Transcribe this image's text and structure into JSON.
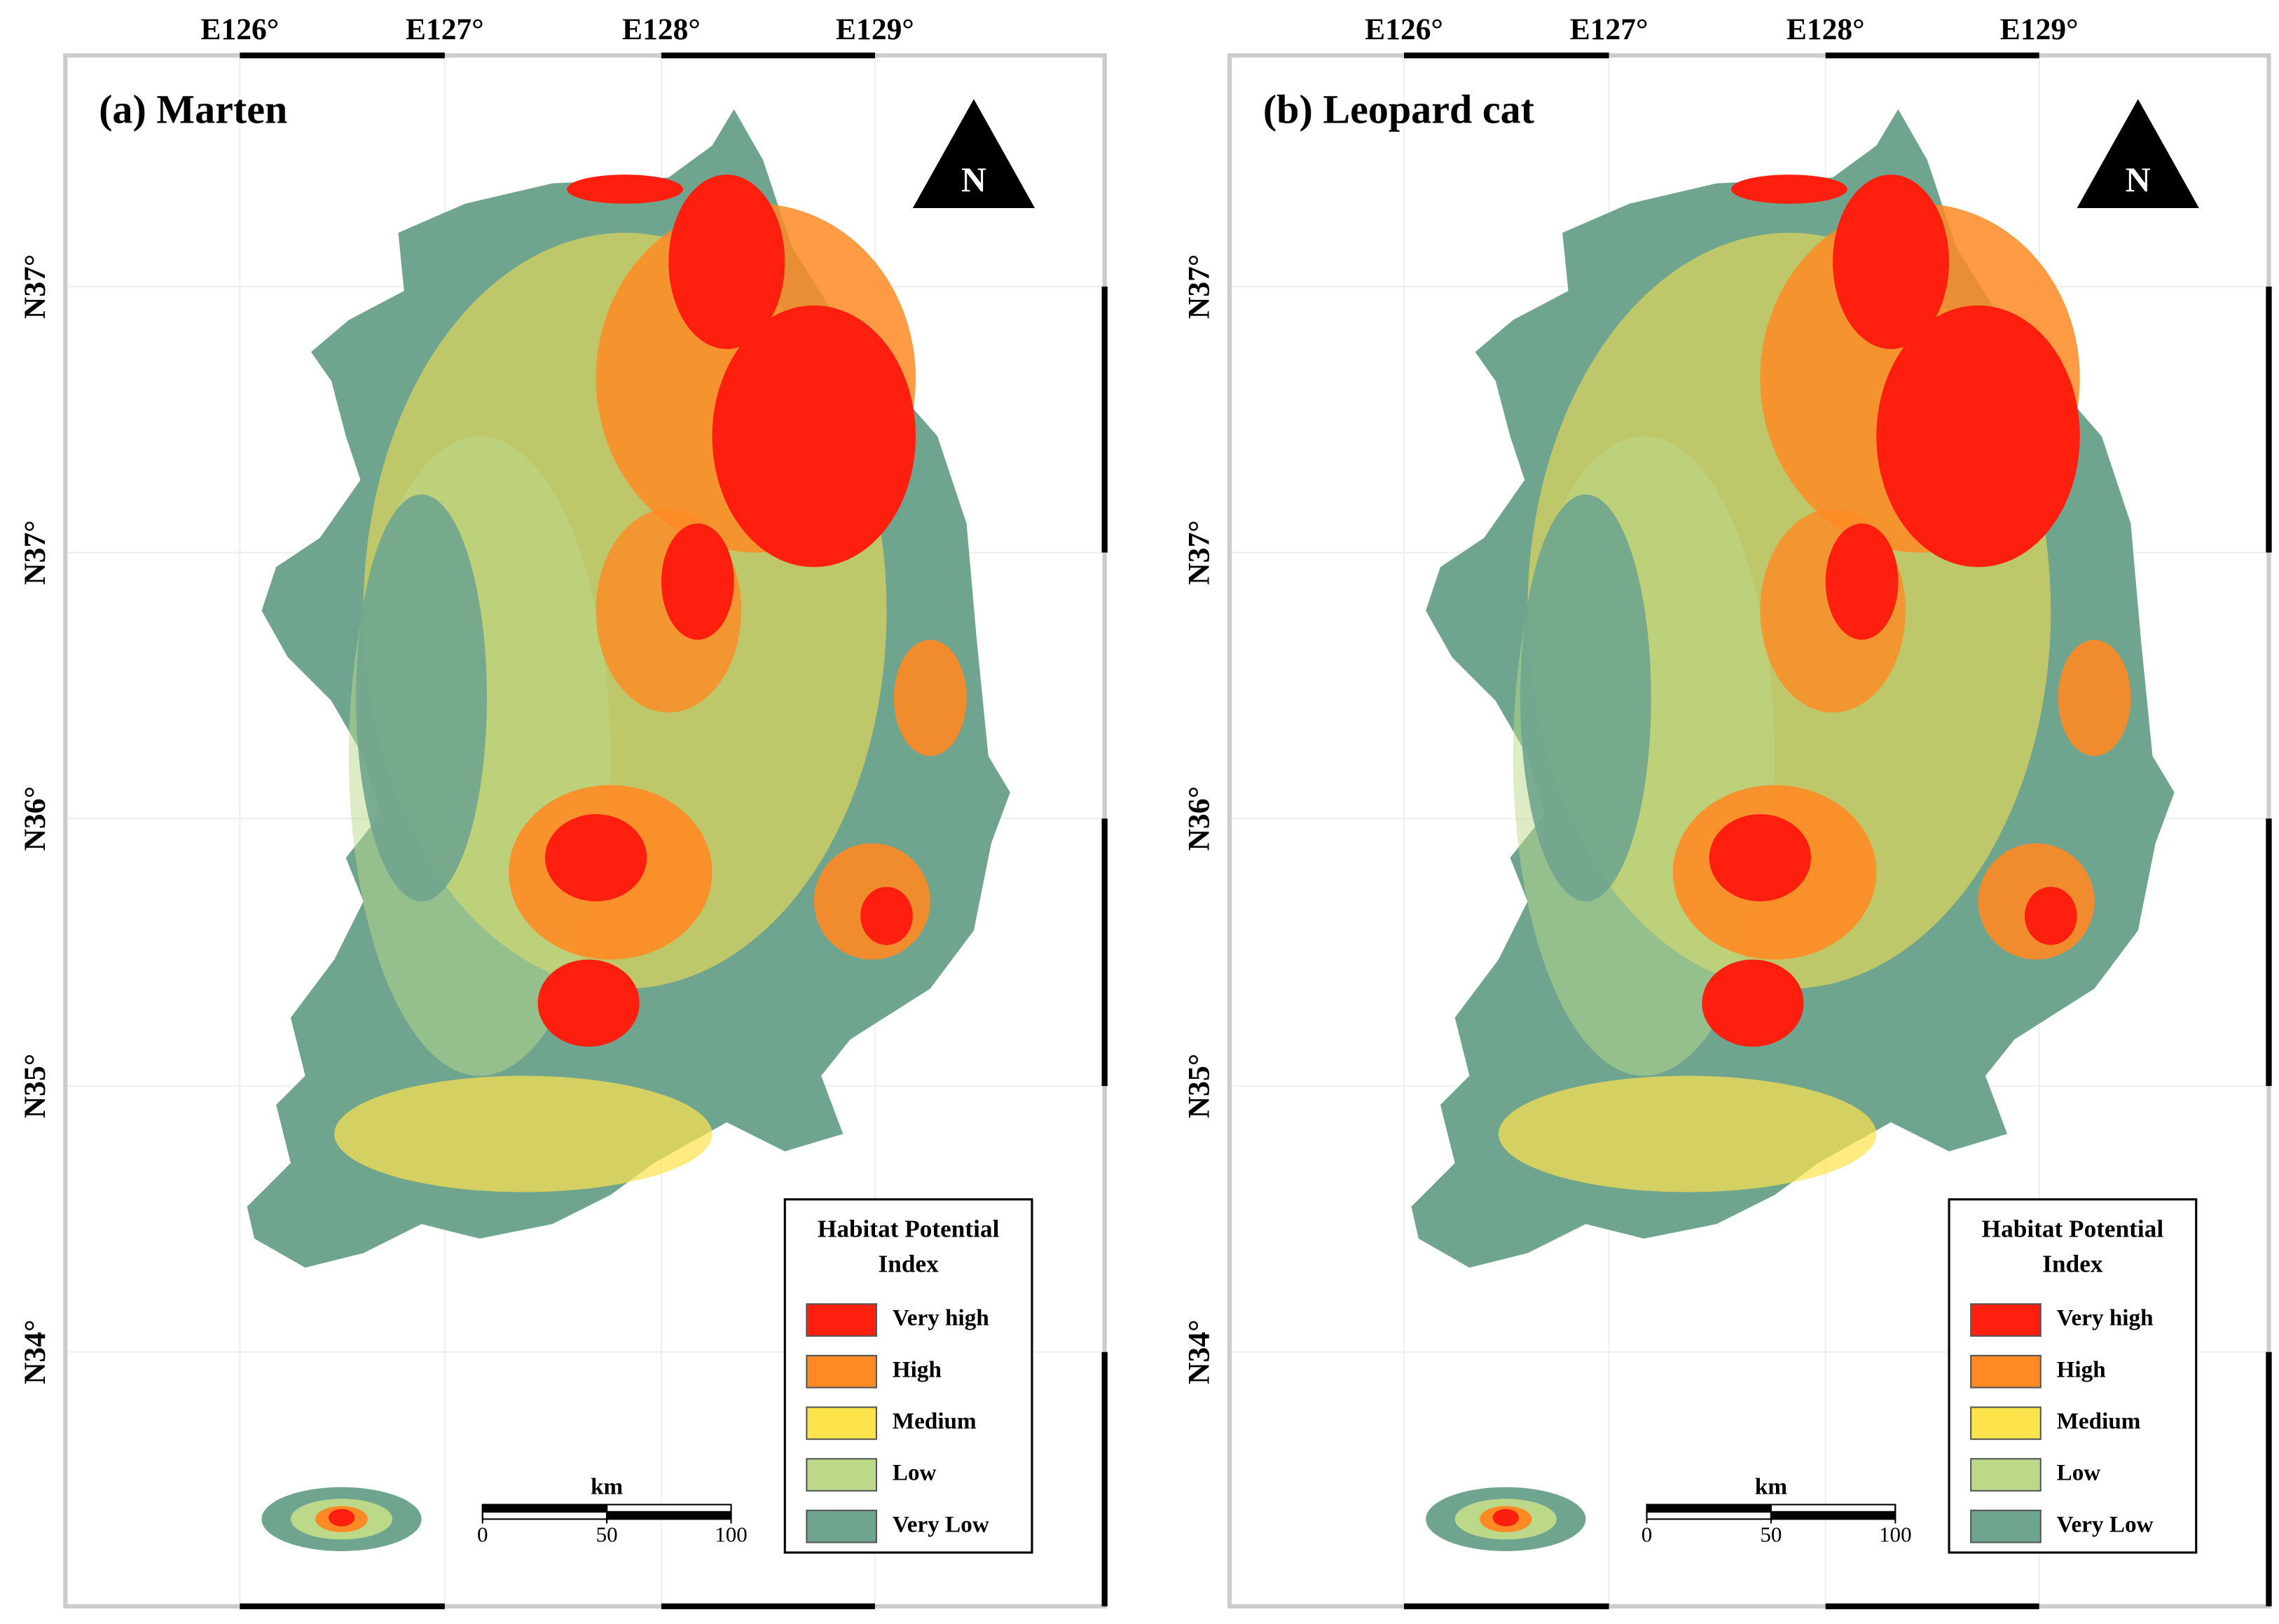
{
  "panels": [
    {
      "title": "(a) Marten",
      "north": "N",
      "lon_labels": [
        "E126°",
        "E127°",
        "E128°",
        "E129°"
      ],
      "lat_labels": [
        "N37°",
        "N37°",
        "N36°",
        "N35°",
        "N34°"
      ],
      "legend": {
        "title_lines": [
          "Habitat Potential",
          "Index"
        ],
        "items": [
          {
            "label": "Very high",
            "color": "#ff1f0f"
          },
          {
            "label": "High",
            "color": "#ff8a24"
          },
          {
            "label": "Medium",
            "color": "#ffe34d"
          },
          {
            "label": "Low",
            "color": "#bcd98a"
          },
          {
            "label": "Very Low",
            "color": "#6fa58f"
          }
        ]
      },
      "scale_bar": {
        "unit": "km",
        "ticks": [
          0,
          50,
          100
        ]
      }
    },
    {
      "title": "(b) Leopard cat",
      "north": "N",
      "lon_labels": [
        "E126°",
        "E127°",
        "E128°",
        "E129°"
      ],
      "lat_labels": [
        "N37°",
        "N37°",
        "N36°",
        "N35°",
        "N34°"
      ],
      "legend": {
        "title_lines": [
          "Habitat Potential",
          "Index"
        ],
        "items": [
          {
            "label": "Very high",
            "color": "#ff1f0f"
          },
          {
            "label": "High",
            "color": "#ff8a24"
          },
          {
            "label": "Medium",
            "color": "#ffe34d"
          },
          {
            "label": "Low",
            "color": "#bcd98a"
          },
          {
            "label": "Very Low",
            "color": "#6fa58f"
          }
        ]
      },
      "scale_bar": {
        "unit": "km",
        "ticks": [
          0,
          50,
          100
        ]
      }
    }
  ]
}
